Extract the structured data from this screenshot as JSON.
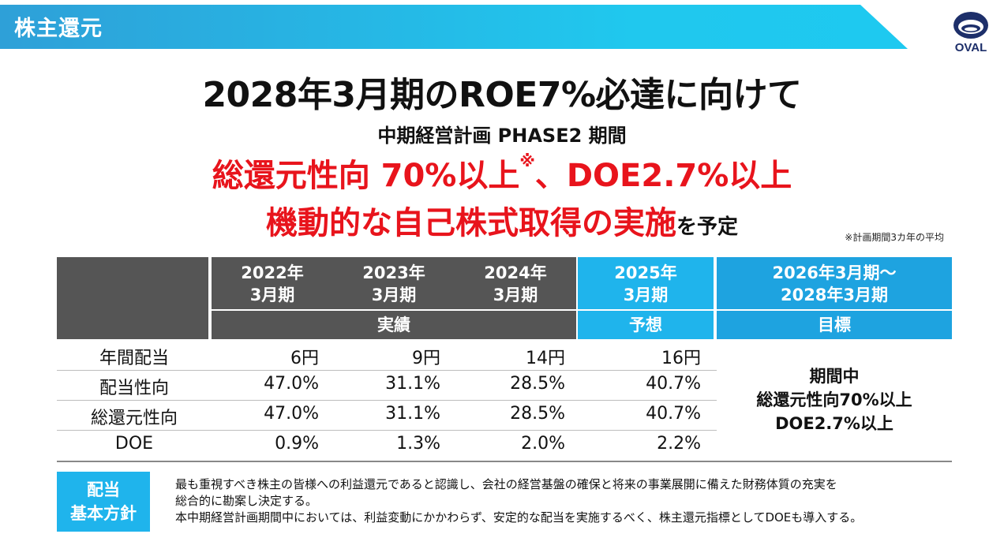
{
  "header": {
    "title": "株主還元",
    "logo_text": "OVAL"
  },
  "headline": "2028年3月期のROE7%必達に向けて",
  "subheadline": "中期経営計画 PHASE2 期間",
  "targets": {
    "line1_text": "総還元性向 70%以上",
    "line1_mark": "※",
    "line1_rest": "、DOE2.7%以上",
    "line2_text": "機動的な自己株式取得の実施",
    "line2_tail": "を予定",
    "footnote": "※計画期間3カ年の平均"
  },
  "table": {
    "columns": [
      {
        "year": "2022年",
        "month": "3月期"
      },
      {
        "year": "2023年",
        "month": "3月期"
      },
      {
        "year": "2024年",
        "month": "3月期"
      },
      {
        "year": "2025年",
        "month": "3月期"
      },
      {
        "year": "2026年3月期～",
        "month": "2028年3月期"
      }
    ],
    "group_labels": {
      "actual": "実績",
      "forecast": "予想",
      "target": "目標"
    },
    "rows": [
      {
        "label": "年間配当",
        "values": [
          "6円",
          "9円",
          "14円",
          "16円"
        ]
      },
      {
        "label": "配当性向",
        "values": [
          "47.0%",
          "31.1%",
          "28.5%",
          "40.7%"
        ]
      },
      {
        "label": "総還元性向",
        "values": [
          "47.0%",
          "31.1%",
          "28.5%",
          "40.7%"
        ]
      },
      {
        "label": "DOE",
        "values": [
          "0.9%",
          "1.3%",
          "2.0%",
          "2.2%"
        ]
      }
    ],
    "target_text": [
      "期間中",
      "総還元性向70%以上",
      "DOE2.7%以上"
    ]
  },
  "policy": {
    "title_line1": "配当",
    "title_line2": "基本方針",
    "lines": [
      "最も重視すべき株主の皆様への利益還元であると認識し、会社の経営基盤の確保と将来の事業展開に備えた財務体質の充実を",
      "総合的に勘案し決定する。",
      "本中期経営計画期間中においては、利益変動にかかわらず、安定的な配当を実施するべく、株主還元指標としてDOEも導入する。"
    ]
  },
  "colors": {
    "accent_blue": "#1fb4ec",
    "highlight_red": "#e8141c",
    "header_gray": "#555555"
  }
}
